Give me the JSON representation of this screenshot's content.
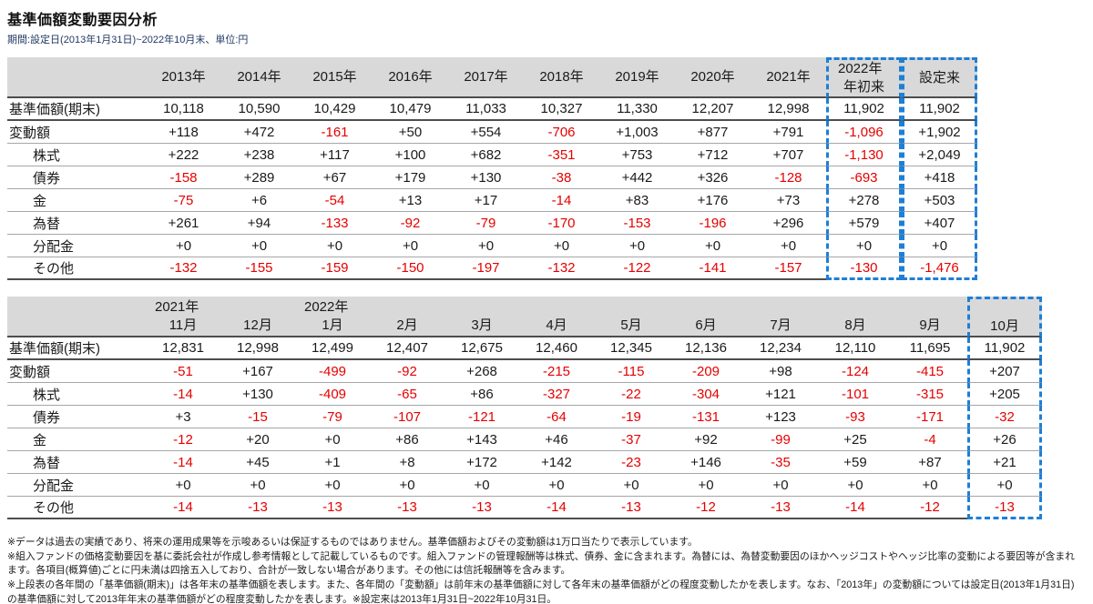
{
  "page": {
    "title": "基準価額変動要因分析",
    "subtitle": "期間:設定日(2013年1月31日)~2022年10月末、単位:円"
  },
  "colors": {
    "negative": "#e60000",
    "header_bg": "#d9d9d9",
    "highlight": "#1e7fd6",
    "title": "#111111",
    "subtitle": "#1f3864"
  },
  "tables": [
    {
      "name": "annual-breakdown",
      "columns": [
        {
          "y": "2013年",
          "m": ""
        },
        {
          "y": "2014年",
          "m": ""
        },
        {
          "y": "2015年",
          "m": ""
        },
        {
          "y": "2016年",
          "m": ""
        },
        {
          "y": "2017年",
          "m": ""
        },
        {
          "y": "2018年",
          "m": ""
        },
        {
          "y": "2019年",
          "m": ""
        },
        {
          "y": "2020年",
          "m": ""
        },
        {
          "y": "2021年",
          "m": ""
        },
        {
          "y": "2022年",
          "m": "年初来"
        },
        {
          "y": "設定来",
          "m": ""
        }
      ],
      "highlight_groups": [
        [
          9
        ],
        [
          10
        ]
      ],
      "rows": [
        {
          "label": "基準価額(期末)",
          "indent": false,
          "values": [
            "10,118",
            "10,590",
            "10,429",
            "10,479",
            "11,033",
            "10,327",
            "11,330",
            "12,207",
            "12,998",
            "11,902",
            "11,902"
          ]
        },
        {
          "label": "変動額",
          "indent": false,
          "values": [
            "+118",
            "+472",
            "-161",
            "+50",
            "+554",
            "-706",
            "+1,003",
            "+877",
            "+791",
            "-1,096",
            "+1,902"
          ]
        },
        {
          "label": "株式",
          "indent": true,
          "values": [
            "+222",
            "+238",
            "+117",
            "+100",
            "+682",
            "-351",
            "+753",
            "+712",
            "+707",
            "-1,130",
            "+2,049"
          ]
        },
        {
          "label": "債券",
          "indent": true,
          "values": [
            "-158",
            "+289",
            "+67",
            "+179",
            "+130",
            "-38",
            "+442",
            "+326",
            "-128",
            "-693",
            "+418"
          ]
        },
        {
          "label": "金",
          "indent": true,
          "values": [
            "-75",
            "+6",
            "-54",
            "+13",
            "+17",
            "-14",
            "+83",
            "+176",
            "+73",
            "+278",
            "+503"
          ]
        },
        {
          "label": "為替",
          "indent": true,
          "values": [
            "+261",
            "+94",
            "-133",
            "-92",
            "-79",
            "-170",
            "-153",
            "-196",
            "+296",
            "+579",
            "+407"
          ]
        },
        {
          "label": "分配金",
          "indent": true,
          "values": [
            "+0",
            "+0",
            "+0",
            "+0",
            "+0",
            "+0",
            "+0",
            "+0",
            "+0",
            "+0",
            "+0"
          ]
        },
        {
          "label": "その他",
          "indent": true,
          "values": [
            "-132",
            "-155",
            "-159",
            "-150",
            "-197",
            "-132",
            "-122",
            "-141",
            "-157",
            "-130",
            "-1,476"
          ]
        }
      ]
    },
    {
      "name": "monthly-breakdown",
      "columns": [
        {
          "y": "2021年",
          "m": "11月"
        },
        {
          "y": "",
          "m": "12月"
        },
        {
          "y": "2022年",
          "m": "1月"
        },
        {
          "y": "",
          "m": "2月"
        },
        {
          "y": "",
          "m": "3月"
        },
        {
          "y": "",
          "m": "4月"
        },
        {
          "y": "",
          "m": "5月"
        },
        {
          "y": "",
          "m": "6月"
        },
        {
          "y": "",
          "m": "7月"
        },
        {
          "y": "",
          "m": "8月"
        },
        {
          "y": "",
          "m": "9月"
        },
        {
          "y": "",
          "m": "10月"
        }
      ],
      "highlight_groups": [
        [
          11
        ]
      ],
      "rows": [
        {
          "label": "基準価額(期末)",
          "indent": false,
          "values": [
            "12,831",
            "12,998",
            "12,499",
            "12,407",
            "12,675",
            "12,460",
            "12,345",
            "12,136",
            "12,234",
            "12,110",
            "11,695",
            "11,902"
          ]
        },
        {
          "label": "変動額",
          "indent": false,
          "values": [
            "-51",
            "+167",
            "-499",
            "-92",
            "+268",
            "-215",
            "-115",
            "-209",
            "+98",
            "-124",
            "-415",
            "+207"
          ]
        },
        {
          "label": "株式",
          "indent": true,
          "values": [
            "-14",
            "+130",
            "-409",
            "-65",
            "+86",
            "-327",
            "-22",
            "-304",
            "+121",
            "-101",
            "-315",
            "+205"
          ]
        },
        {
          "label": "債券",
          "indent": true,
          "values": [
            "+3",
            "-15",
            "-79",
            "-107",
            "-121",
            "-64",
            "-19",
            "-131",
            "+123",
            "-93",
            "-171",
            "-32"
          ]
        },
        {
          "label": "金",
          "indent": true,
          "values": [
            "-12",
            "+20",
            "+0",
            "+86",
            "+143",
            "+46",
            "-37",
            "+92",
            "-99",
            "+25",
            "-4",
            "+26"
          ]
        },
        {
          "label": "為替",
          "indent": true,
          "values": [
            "-14",
            "+45",
            "+1",
            "+8",
            "+172",
            "+142",
            "-23",
            "+146",
            "-35",
            "+59",
            "+87",
            "+21"
          ]
        },
        {
          "label": "分配金",
          "indent": true,
          "values": [
            "+0",
            "+0",
            "+0",
            "+0",
            "+0",
            "+0",
            "+0",
            "+0",
            "+0",
            "+0",
            "+0",
            "+0"
          ]
        },
        {
          "label": "その他",
          "indent": true,
          "values": [
            "-14",
            "-13",
            "-13",
            "-13",
            "-13",
            "-14",
            "-13",
            "-12",
            "-13",
            "-14",
            "-12",
            "-13"
          ]
        }
      ]
    }
  ],
  "footnotes": [
    "※データは過去の実績であり、将来の運用成果等を示唆あるいは保証するものではありません。基準価額およびその変動額は1万口当たりで表示しています。",
    "※組入ファンドの価格変動要因を基に委託会社が作成し参考情報として記載しているものです。組入ファンドの管理報酬等は株式、債券、金に含まれます。為替には、為替変動要因のほかヘッジコストやヘッジ比率の変動による要因等が含まれます。各項目(概算値)ごとに円未満は四捨五入しており、合計が一致しない場合があります。その他には信託報酬等を含みます。",
    "※上段表の各年間の「基準価額(期末)」は各年末の基準価額を表します。また、各年間の「変動額」は前年末の基準価額に対して各年末の基準価額がどの程度変動したかを表します。なお、「2013年」の変動額については設定日(2013年1月31日)の基準価額に対して2013年年末の基準価額がどの程度変動したかを表します。※設定来は2013年1月31日~2022年10月31日。"
  ]
}
